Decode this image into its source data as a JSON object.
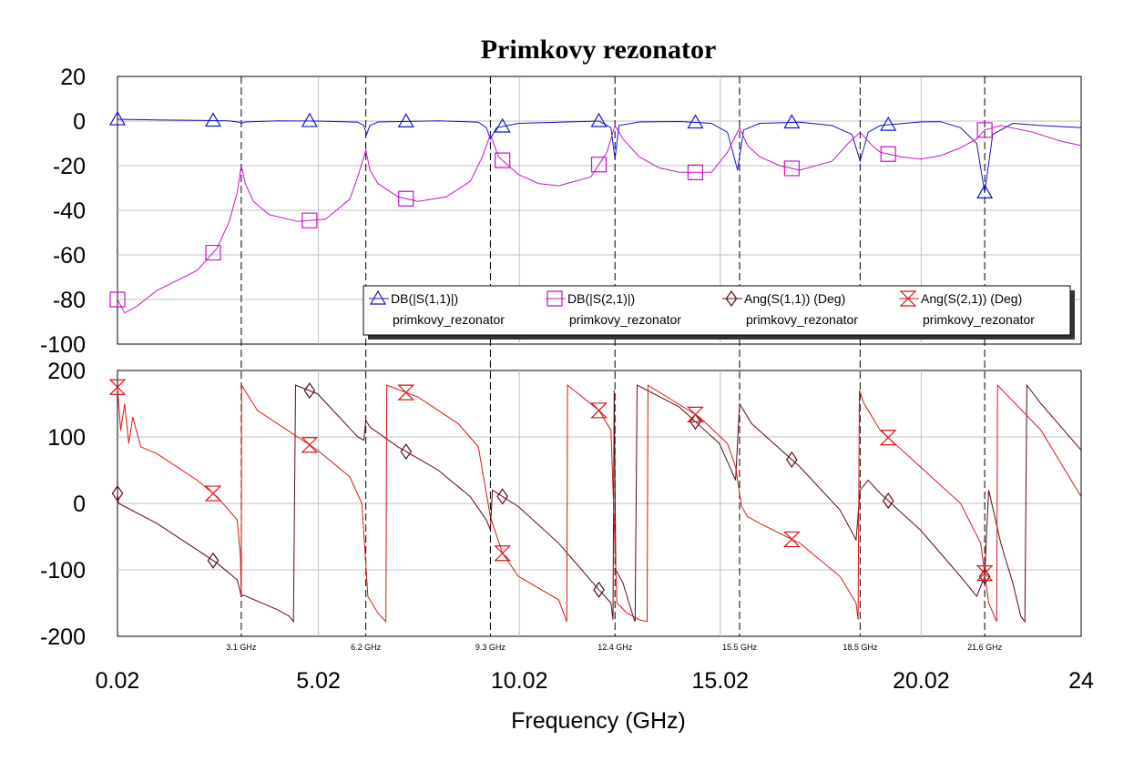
{
  "chart_data": {
    "type": "line",
    "title": "Primkovy rezonator",
    "xlabel": "Frequency (GHz)",
    "xlim": [
      0.02,
      24
    ],
    "x_major_ticks": [
      "0.02",
      "5.02",
      "10.02",
      "15.02",
      "20.02",
      "24"
    ],
    "x_marker_ticks": [
      "3.1 GHz",
      "6.2 GHz",
      "9.3 GHz",
      "12.4 GHz",
      "15.5 GHz",
      "18.5 GHz",
      "21.6 GHz"
    ],
    "markers_ghz": [
      3.1,
      6.2,
      9.3,
      12.4,
      15.5,
      18.5,
      21.6
    ],
    "grid": true,
    "legend_placement": "bottom-right of top panel",
    "panels": [
      {
        "name": "magnitude",
        "ylim": [
          -100,
          20
        ],
        "yticks": [
          "20",
          "0",
          "-20",
          "-40",
          "-60",
          "-80",
          "-100"
        ],
        "series": [
          {
            "name": "DB(|S(1,1)|)",
            "sub": "primkovy_rezonator",
            "color": "#1414c8",
            "marker": "triangle",
            "points": [
              [
                0.02,
                0.8
              ],
              [
                1,
                0.5
              ],
              [
                2,
                0.3
              ],
              [
                2.8,
                0.1
              ],
              [
                3.05,
                -0.5
              ],
              [
                3.1,
                -1
              ],
              [
                3.2,
                -0.4
              ],
              [
                4,
                0.1
              ],
              [
                5,
                0
              ],
              [
                6,
                -0.5
              ],
              [
                6.15,
                -2
              ],
              [
                6.22,
                -6
              ],
              [
                6.3,
                -2
              ],
              [
                6.5,
                -0.4
              ],
              [
                8,
                0.1
              ],
              [
                9,
                -0.5
              ],
              [
                9.2,
                -3
              ],
              [
                9.3,
                -8
              ],
              [
                9.45,
                -3
              ],
              [
                10,
                -1
              ],
              [
                11,
                -0.5
              ],
              [
                12,
                0
              ],
              [
                12.3,
                -3
              ],
              [
                12.4,
                -17
              ],
              [
                12.5,
                -2
              ],
              [
                13,
                -0.4
              ],
              [
                14,
                -0.2
              ],
              [
                14.8,
                -1
              ],
              [
                15.2,
                -5
              ],
              [
                15.45,
                -22
              ],
              [
                15.6,
                -4
              ],
              [
                16,
                -1
              ],
              [
                17,
                -0.5
              ],
              [
                17.8,
                -2
              ],
              [
                18.3,
                -6
              ],
              [
                18.5,
                -18
              ],
              [
                18.7,
                -5
              ],
              [
                19,
                -2
              ],
              [
                20,
                -0.4
              ],
              [
                20.5,
                -0.3
              ],
              [
                21,
                -3
              ],
              [
                21.4,
                -10
              ],
              [
                21.6,
                -32
              ],
              [
                21.8,
                -6
              ],
              [
                22.3,
                -1
              ],
              [
                23,
                -2
              ],
              [
                24,
                -3
              ]
            ]
          },
          {
            "name": "DB(|S(2,1)|)",
            "sub": "primkovy_rezonator",
            "color": "#c814c8",
            "marker": "square",
            "points": [
              [
                0.02,
                -80
              ],
              [
                0.2,
                -86
              ],
              [
                0.5,
                -83
              ],
              [
                1,
                -76
              ],
              [
                2,
                -67
              ],
              [
                2.5,
                -57
              ],
              [
                2.8,
                -45
              ],
              [
                3,
                -32
              ],
              [
                3.1,
                -20
              ],
              [
                3.2,
                -28
              ],
              [
                3.4,
                -36
              ],
              [
                3.8,
                -42
              ],
              [
                4.5,
                -45
              ],
              [
                5.2,
                -44
              ],
              [
                5.8,
                -35
              ],
              [
                6,
                -25
              ],
              [
                6.2,
                -13
              ],
              [
                6.3,
                -22
              ],
              [
                6.5,
                -28
              ],
              [
                7,
                -34
              ],
              [
                7.5,
                -36
              ],
              [
                8.2,
                -34
              ],
              [
                8.8,
                -27
              ],
              [
                9.1,
                -16
              ],
              [
                9.3,
                -6
              ],
              [
                9.5,
                -16
              ],
              [
                10,
                -24
              ],
              [
                10.5,
                -28
              ],
              [
                11,
                -29
              ],
              [
                11.8,
                -25
              ],
              [
                12.2,
                -14
              ],
              [
                12.4,
                -2
              ],
              [
                12.6,
                -8
              ],
              [
                13,
                -16
              ],
              [
                13.5,
                -21
              ],
              [
                14,
                -23
              ],
              [
                14.8,
                -23
              ],
              [
                15.2,
                -14
              ],
              [
                15.5,
                -3
              ],
              [
                15.7,
                -11
              ],
              [
                16,
                -16
              ],
              [
                16.5,
                -20
              ],
              [
                17,
                -22
              ],
              [
                17.8,
                -18
              ],
              [
                18.2,
                -10
              ],
              [
                18.5,
                -5
              ],
              [
                18.8,
                -11
              ],
              [
                19,
                -14
              ],
              [
                19.5,
                -16
              ],
              [
                20,
                -17
              ],
              [
                20.5,
                -15.5
              ],
              [
                21,
                -12
              ],
              [
                21.4,
                -8
              ],
              [
                21.6,
                -4
              ],
              [
                22,
                -2
              ],
              [
                22.8,
                -5
              ],
              [
                23.5,
                -9
              ],
              [
                24,
                -11
              ]
            ]
          }
        ]
      },
      {
        "name": "phase",
        "ylim": [
          -200,
          200
        ],
        "yticks": [
          "200",
          "100",
          "0",
          "-100",
          "-200"
        ],
        "series": [
          {
            "name": "Ang(S(1,1)) (Deg)",
            "sub": "primkovy_rezonator",
            "color": "#5a0a14",
            "marker": "diamond",
            "points": [
              [
                0.02,
                15
              ],
              [
                0.05,
                0
              ],
              [
                1,
                -30
              ],
              [
                2,
                -70
              ],
              [
                2.5,
                -90
              ],
              [
                3,
                -115
              ],
              [
                3.1,
                -140
              ],
              [
                3.15,
                -138
              ],
              [
                4,
                -160
              ],
              [
                4.3,
                -170
              ],
              [
                4.4,
                -178
              ],
              [
                4.45,
                178
              ],
              [
                5,
                165
              ],
              [
                6,
                100
              ],
              [
                6.15,
                95
              ],
              [
                6.2,
                125
              ],
              [
                6.3,
                115
              ],
              [
                7,
                85
              ],
              [
                8,
                50
              ],
              [
                8.8,
                10
              ],
              [
                9.2,
                -25
              ],
              [
                9.3,
                -40
              ],
              [
                9.35,
                20
              ],
              [
                10,
                -5
              ],
              [
                11,
                -60
              ],
              [
                12,
                -130
              ],
              [
                12.3,
                -150
              ],
              [
                12.35,
                -175
              ],
              [
                12.38,
                170
              ],
              [
                12.42,
                -100
              ],
              [
                12.6,
                -120
              ],
              [
                12.85,
                -170
              ],
              [
                12.9,
                -178
              ],
              [
                12.95,
                178
              ],
              [
                14,
                145
              ],
              [
                15,
                90
              ],
              [
                15.4,
                35
              ],
              [
                15.5,
                150
              ],
              [
                15.8,
                120
              ],
              [
                17,
                55
              ],
              [
                18,
                -10
              ],
              [
                18.4,
                -55
              ],
              [
                18.5,
                20
              ],
              [
                18.7,
                35
              ],
              [
                19,
                15
              ],
              [
                20,
                -40
              ],
              [
                21,
                -110
              ],
              [
                21.4,
                -140
              ],
              [
                21.6,
                -110
              ],
              [
                21.65,
                -40
              ],
              [
                21.7,
                20
              ],
              [
                22,
                -60
              ],
              [
                22.3,
                -120
              ],
              [
                22.5,
                -170
              ],
              [
                22.6,
                -178
              ],
              [
                22.65,
                178
              ],
              [
                23,
                150
              ],
              [
                24,
                80
              ]
            ]
          },
          {
            "name": "Ang(S(2,1)) (Deg)",
            "sub": "primkovy_rezonator",
            "color": "#dc1414",
            "marker": "hourglass",
            "points": [
              [
                0.02,
                175
              ],
              [
                0.1,
                110
              ],
              [
                0.2,
                150
              ],
              [
                0.3,
                90
              ],
              [
                0.4,
                130
              ],
              [
                0.6,
                85
              ],
              [
                1,
                75
              ],
              [
                2,
                35
              ],
              [
                2.5,
                10
              ],
              [
                3,
                -25
              ],
              [
                3.08,
                -80
              ],
              [
                3.1,
                -140
              ],
              [
                3.11,
                178
              ],
              [
                3.5,
                140
              ],
              [
                5,
                80
              ],
              [
                5.8,
                40
              ],
              [
                6.1,
                0
              ],
              [
                6.25,
                -140
              ],
              [
                6.5,
                -165
              ],
              [
                6.7,
                -178
              ],
              [
                6.72,
                178
              ],
              [
                7.5,
                160
              ],
              [
                8.5,
                120
              ],
              [
                9.0,
                85
              ],
              [
                9.3,
                -20
              ],
              [
                9.6,
                -75
              ],
              [
                10,
                -110
              ],
              [
                11,
                -145
              ],
              [
                11.2,
                -178
              ],
              [
                11.22,
                178
              ],
              [
                12,
                140
              ],
              [
                12.3,
                110
              ],
              [
                12.45,
                -150
              ],
              [
                12.7,
                -165
              ],
              [
                13,
                -175
              ],
              [
                13.2,
                -178
              ],
              [
                13.22,
                178
              ],
              [
                14.5,
                130
              ],
              [
                15.2,
                90
              ],
              [
                15.4,
                55
              ],
              [
                15.55,
                -5
              ],
              [
                15.7,
                -20
              ],
              [
                16,
                -30
              ],
              [
                17,
                -60
              ],
              [
                18,
                -110
              ],
              [
                18.4,
                -150
              ],
              [
                18.45,
                -175
              ],
              [
                18.48,
                170
              ],
              [
                18.6,
                150
              ],
              [
                19,
                110
              ],
              [
                20,
                55
              ],
              [
                21,
                0
              ],
              [
                21.5,
                -60
              ],
              [
                21.7,
                -150
              ],
              [
                21.9,
                -178
              ],
              [
                21.92,
                178
              ],
              [
                23,
                110
              ],
              [
                24,
                10
              ]
            ]
          }
        ]
      }
    ]
  }
}
